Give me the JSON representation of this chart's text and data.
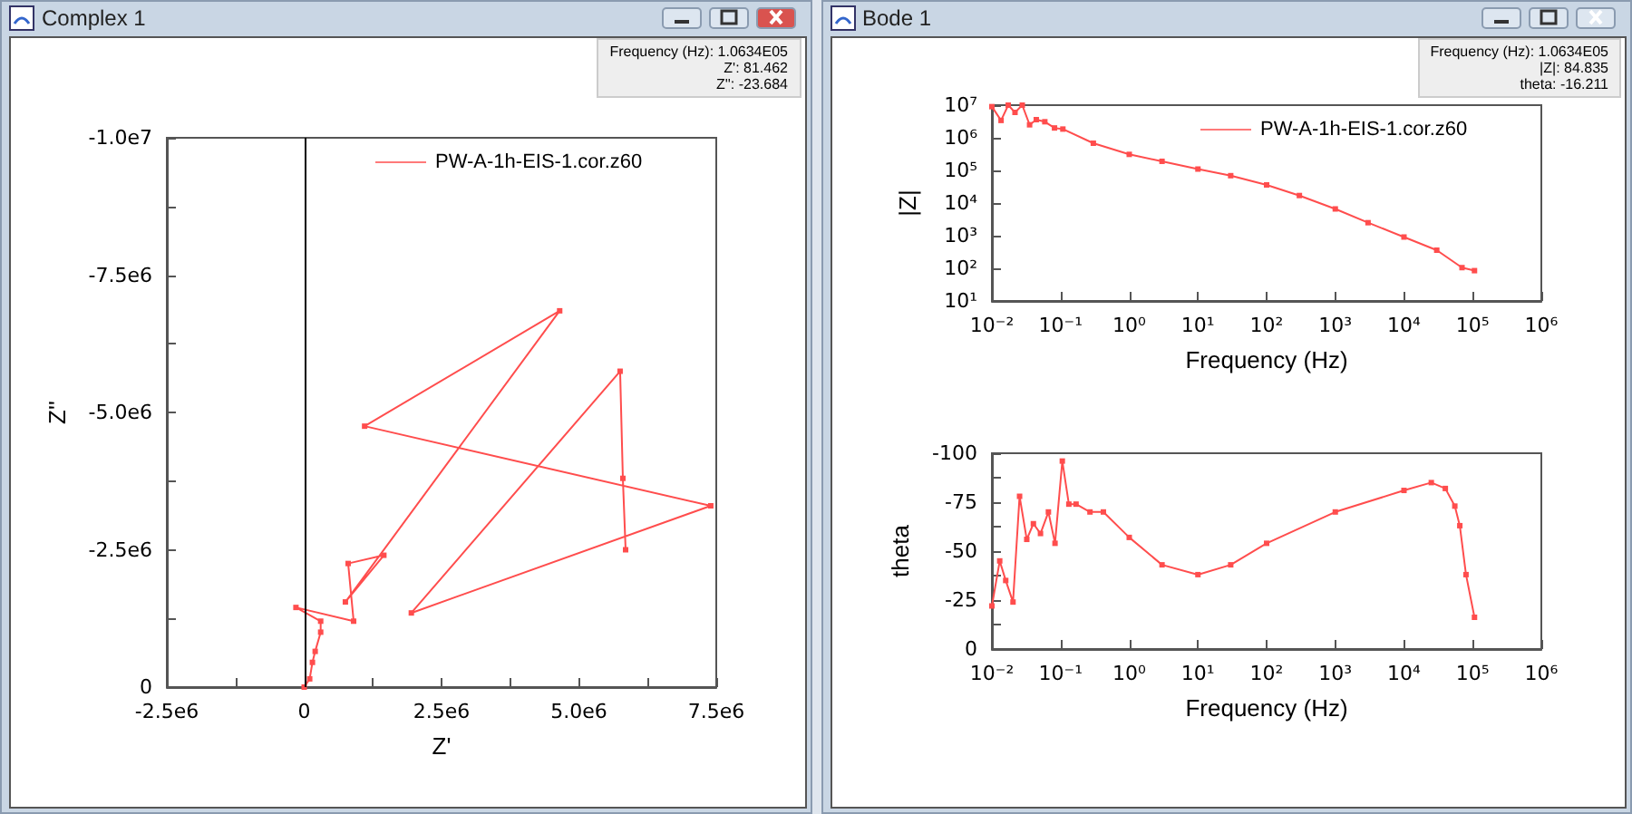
{
  "chart_data": [
    {
      "type": "line",
      "title": "Complex 1",
      "xlabel": "Z'",
      "ylabel": "Z''",
      "annotations": [
        "Frequency (Hz): 1.0634E05",
        "Z': 81.462",
        "Z'': -23.684"
      ],
      "x": [
        0,
        100000,
        150000,
        200000,
        300000,
        300000,
        -150000,
        900000,
        800000,
        1450000,
        750000,
        4650000,
        1100000,
        7400000,
        1950000,
        5750000,
        5800000,
        5850000
      ],
      "series": [
        {
          "name": "PW-A-1h-EIS-1.cor.z60",
          "color": "#ff4d4d",
          "values": [
            0,
            -150000,
            -450000,
            -650000,
            -1000000,
            -1200000,
            -1450000,
            -1200000,
            -2250000,
            -2400000,
            -1550000,
            -6850000,
            -4750000,
            -3300000,
            -1350000,
            -5750000,
            -3800000,
            -2500000
          ]
        }
      ],
      "xlim": [
        -2500000,
        7500000
      ],
      "xticks": [
        {
          "value": -2500000,
          "label": "-2.5e6"
        },
        {
          "value": -1250000,
          "label": null
        },
        0,
        {
          "value": 1250000,
          "label": null
        },
        {
          "value": 2500000,
          "label": "2.5e6"
        },
        {
          "value": 3750000,
          "label": null
        },
        {
          "value": 5000000,
          "label": "5.0e6"
        },
        {
          "value": 6250000,
          "label": null
        },
        {
          "value": 7500000,
          "label": "7.5e6"
        }
      ],
      "ylim": [
        0,
        -10000000
      ],
      "yticks": [
        0,
        {
          "value": -1250000,
          "label": null
        },
        {
          "value": -2500000,
          "label": "-2.5e6"
        },
        {
          "value": -3750000,
          "label": null
        },
        {
          "value": -5000000,
          "label": "-5.0e6"
        },
        {
          "value": -6250000,
          "label": null
        },
        {
          "value": -7500000,
          "label": "-7.5e6"
        },
        {
          "value": -8750000,
          "label": null
        },
        {
          "value": -10000000,
          "label": "-1.0e7"
        }
      ],
      "ref_lines": [
        {
          "axis": "x",
          "value": 0,
          "color": "#000000"
        }
      ],
      "legend": "top right",
      "grid": false,
      "marker": "square",
      "line_style": "solid"
    },
    {
      "type": "line",
      "title": "Bode 1",
      "xlabel": "Frequency (Hz)",
      "ylabel": "|Z|",
      "annotations": [
        "Frequency (Hz): 1.0634E05",
        "|Z|: 84.835",
        "theta: -16.211"
      ],
      "x": [
        0.01,
        0.0136,
        0.0173,
        0.0217,
        0.0277,
        0.0354,
        0.0443,
        0.059,
        0.0816,
        0.108,
        0.3,
        1,
        3,
        10,
        30,
        100,
        300,
        1000,
        3000,
        10000,
        30000,
        70000,
        106340
      ],
      "series": [
        {
          "name": "PW-A-1h-EIS-1.cor.z60",
          "color": "#ff4d4d",
          "values": [
            9000000,
            3400000,
            10000000,
            6000000,
            10000000,
            2500000,
            3600000,
            3100000,
            2000000,
            1850000,
            680000,
            310000,
            190000,
            110000,
            69000,
            36000,
            17000,
            6600,
            2500,
            910,
            360,
            105,
            84.835
          ]
        }
      ],
      "xlim": [
        0.01,
        1000000
      ],
      "xticks": [
        {
          "value": 0.01,
          "label": "10⁻²"
        },
        {
          "value": 0.1,
          "label": "10⁻¹"
        },
        {
          "value": 1,
          "label": "10⁰"
        },
        {
          "value": 10,
          "label": "10¹"
        },
        {
          "value": 100,
          "label": "10²"
        },
        {
          "value": 1000,
          "label": "10³"
        },
        {
          "value": 10000,
          "label": "10⁴"
        },
        {
          "value": 100000,
          "label": "10⁵"
        },
        {
          "value": 1000000,
          "label": "10⁶"
        }
      ],
      "ylim": [
        10,
        10000000
      ],
      "yticks": [
        {
          "value": 10,
          "label": "10¹"
        },
        {
          "value": 100,
          "label": "10²"
        },
        {
          "value": 1000,
          "label": "10³"
        },
        {
          "value": 10000,
          "label": "10⁴"
        },
        {
          "value": 100000,
          "label": "10⁵"
        },
        {
          "value": 1000000,
          "label": "10⁶"
        },
        {
          "value": 10000000,
          "label": "10⁷"
        }
      ],
      "log": "xy",
      "legend": "top right",
      "grid": false,
      "marker": "square",
      "line_style": "solid"
    },
    {
      "type": "line",
      "xlabel": "Frequency (Hz)",
      "ylabel": "theta",
      "x": [
        0.01,
        0.013,
        0.0159,
        0.0203,
        0.0253,
        0.0322,
        0.0402,
        0.051,
        0.0665,
        0.083,
        0.106,
        0.132,
        0.168,
        0.268,
        0.42,
        1,
        3,
        10,
        30,
        100,
        1000,
        10000,
        25000,
        40000,
        55000,
        65000,
        80000,
        106340
      ],
      "series": [
        {
          "color": "#ff4d4d",
          "values": [
            -22,
            -45,
            -35,
            -24,
            -78,
            -56,
            -64,
            -59,
            -70,
            -54,
            -96,
            -74,
            -74,
            -70,
            -70,
            -57,
            -43,
            -38,
            -43,
            -54,
            -70,
            -81,
            -85,
            -82,
            -73,
            -63,
            -38,
            -16.211
          ]
        }
      ],
      "xlim": [
        0.01,
        1000000
      ],
      "xticks": [
        {
          "value": 0.01,
          "label": "10⁻²"
        },
        {
          "value": 0.1,
          "label": "10⁻¹"
        },
        {
          "value": 1,
          "label": "10⁰"
        },
        {
          "value": 10,
          "label": "10¹"
        },
        {
          "value": 100,
          "label": "10²"
        },
        {
          "value": 1000,
          "label": "10³"
        },
        {
          "value": 10000,
          "label": "10⁴"
        },
        {
          "value": 100000,
          "label": "10⁵"
        },
        {
          "value": 1000000,
          "label": "10⁶"
        }
      ],
      "ylim": [
        0,
        -100
      ],
      "yticks": [
        0,
        {
          "value": -12.5,
          "label": null
        },
        -25,
        {
          "value": -37.5,
          "label": null
        },
        -50,
        {
          "value": -62.5,
          "label": null
        },
        -75,
        {
          "value": -87.5,
          "label": null
        },
        -100
      ],
      "log": "x",
      "grid": false,
      "marker": "square",
      "line_style": "solid"
    }
  ]
}
